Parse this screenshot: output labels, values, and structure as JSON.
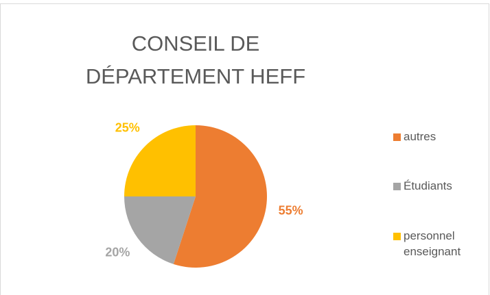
{
  "chart_data": {
    "type": "pie",
    "title": "CONSEIL DE DÉPARTEMENT HEFF",
    "categories": [
      "autres",
      "Étudiants",
      "personnel enseignant"
    ],
    "values": [
      55,
      20,
      25
    ],
    "value_labels": [
      "55%",
      "20%",
      "25%"
    ],
    "colors": [
      "#ED7D31",
      "#A5A5A5",
      "#FFC000"
    ],
    "legend": "right"
  }
}
